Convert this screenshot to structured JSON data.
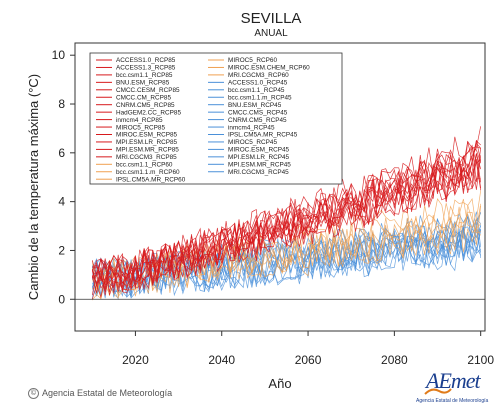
{
  "chart_data": {
    "type": "line",
    "title": "SEVILLA",
    "subtitle": "ANUAL",
    "xlabel": "Año",
    "ylabel": "Cambio de la temperatura máxima (°C)",
    "xlim": [
      2006,
      2101
    ],
    "ylim": [
      -1.3,
      10.5
    ],
    "xticks": [
      2020,
      2040,
      2060,
      2080,
      2100
    ],
    "yticks": [
      0,
      2,
      4,
      6,
      8,
      10
    ],
    "x_start": 2010,
    "x_end": 2100,
    "zero_line": 0,
    "legend_position": "top-left (two columns)",
    "colors": {
      "RCP85": "#d7191c",
      "RCP60": "#f0a050",
      "RCP45": "#4a90d9"
    },
    "trends": {
      "RCP85": {
        "start": 0.8,
        "end": 5.7
      },
      "RCP60": {
        "start": 0.8,
        "end": 3.2
      },
      "RCP45": {
        "start": 0.8,
        "end": 2.6
      }
    },
    "series": [
      {
        "name": "ACCESS1.0_RCP85",
        "scenario": "RCP85"
      },
      {
        "name": "ACCESS1.3_RCP85",
        "scenario": "RCP85"
      },
      {
        "name": "bcc.csm1.1_RCP85",
        "scenario": "RCP85"
      },
      {
        "name": "BNU.ESM_RCP85",
        "scenario": "RCP85"
      },
      {
        "name": "CMCC.CESM_RCP85",
        "scenario": "RCP85"
      },
      {
        "name": "CMCC.CM_RCP85",
        "scenario": "RCP85"
      },
      {
        "name": "CNRM.CM5_RCP85",
        "scenario": "RCP85"
      },
      {
        "name": "HadGEM2.CC_RCP85",
        "scenario": "RCP85"
      },
      {
        "name": "inmcm4_RCP85",
        "scenario": "RCP85"
      },
      {
        "name": "MIROC5_RCP85",
        "scenario": "RCP85"
      },
      {
        "name": "MIROC.ESM_RCP85",
        "scenario": "RCP85"
      },
      {
        "name": "MPI.ESM.LR_RCP85",
        "scenario": "RCP85"
      },
      {
        "name": "MPI.ESM.MR_RCP85",
        "scenario": "RCP85"
      },
      {
        "name": "MRI.CGCM3_RCP85",
        "scenario": "RCP85"
      },
      {
        "name": "bcc.csm1.1_RCP60",
        "scenario": "RCP60"
      },
      {
        "name": "bcc.csm1.1.m_RCP60",
        "scenario": "RCP60"
      },
      {
        "name": "IPSL.CM5A.MR_RCP60",
        "scenario": "RCP60"
      },
      {
        "name": "MIROC5_RCP60",
        "scenario": "RCP60"
      },
      {
        "name": "MIROC.ESM.CHEM_RCP60",
        "scenario": "RCP60"
      },
      {
        "name": "MRI.CGCM3_RCP60",
        "scenario": "RCP60"
      },
      {
        "name": "ACCESS1.0_RCP45",
        "scenario": "RCP45"
      },
      {
        "name": "bcc.csm1.1_RCP45",
        "scenario": "RCP45"
      },
      {
        "name": "bcc.csm1.1.m_RCP45",
        "scenario": "RCP45"
      },
      {
        "name": "BNU.ESM_RCP45",
        "scenario": "RCP45"
      },
      {
        "name": "CMCC.CMS_RCP45",
        "scenario": "RCP45"
      },
      {
        "name": "CNRM.CM5_RCP45",
        "scenario": "RCP45"
      },
      {
        "name": "inmcm4_RCP45",
        "scenario": "RCP45"
      },
      {
        "name": "IPSL.CM5A.MR_RCP45",
        "scenario": "RCP45"
      },
      {
        "name": "MIROC5_RCP45",
        "scenario": "RCP45"
      },
      {
        "name": "MIROC.ESM_RCP45",
        "scenario": "RCP45"
      },
      {
        "name": "MPI.ESM.LR_RCP45",
        "scenario": "RCP45"
      },
      {
        "name": "MPI.ESM.MR_RCP45",
        "scenario": "RCP45"
      },
      {
        "name": "MRI.CGCM3_RCP45",
        "scenario": "RCP45"
      }
    ]
  },
  "footer": {
    "copyright_symbol": "©",
    "credit": "Agencia Estatal de Meteorología"
  },
  "logo": {
    "text": "AEmet",
    "subtext": "Agencia Estatal de Meteorología"
  }
}
